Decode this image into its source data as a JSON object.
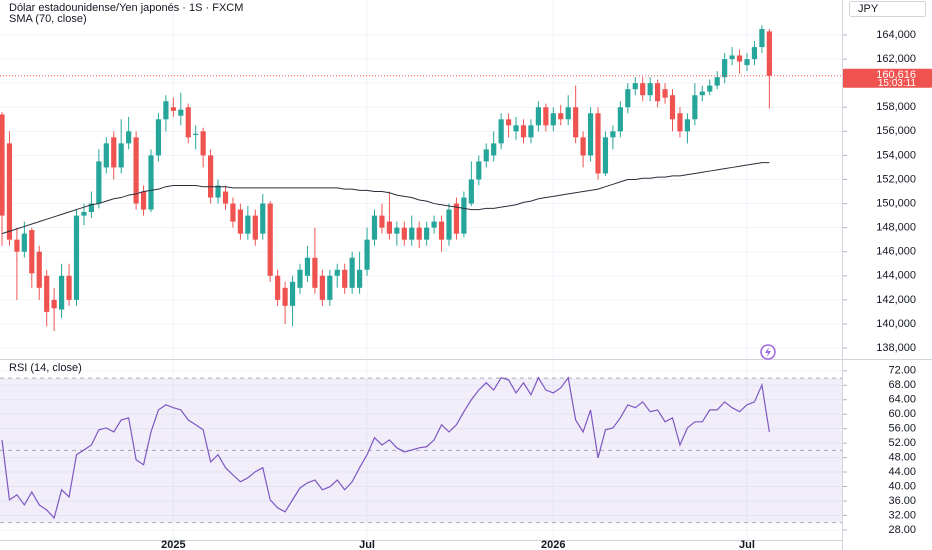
{
  "header": {
    "currency": "JPY"
  },
  "chart_data": [
    {
      "type": "candlestick",
      "title": "Dólar estadounidense/Yen japonés · 1S · FXCM",
      "categories": [
        null,
        null,
        null,
        null,
        null,
        null,
        null,
        null,
        null,
        null,
        null,
        null,
        null,
        null,
        null,
        null,
        null,
        null,
        null,
        null,
        null,
        null,
        null,
        "2025",
        null,
        null,
        null,
        null,
        null,
        null,
        null,
        null,
        null,
        null,
        null,
        null,
        null,
        null,
        null,
        null,
        null,
        null,
        null,
        null,
        null,
        null,
        null,
        null,
        null,
        "Jul",
        null,
        null,
        null,
        null,
        null,
        null,
        null,
        null,
        null,
        null,
        null,
        null,
        null,
        null,
        null,
        null,
        null,
        null,
        null,
        null,
        null,
        null,
        null,
        null,
        "2026",
        null,
        null,
        null,
        null,
        null,
        null,
        null,
        null,
        null,
        null,
        null,
        null,
        null,
        null,
        null,
        null,
        null,
        null,
        null,
        null,
        null,
        null,
        null,
        null,
        null,
        "Jul",
        null,
        null,
        null
      ],
      "open": [
        157.4,
        155,
        147,
        146,
        147.8,
        146,
        144,
        142,
        141.2,
        144,
        142,
        149,
        149.3,
        150,
        153,
        155.5,
        153,
        155,
        155.5,
        151,
        149.5,
        154,
        157,
        158,
        157.3,
        158,
        155.7,
        156,
        154,
        150.5,
        151,
        150,
        149.5,
        147.5,
        149,
        147.5,
        150,
        144,
        143,
        141.5,
        143,
        144,
        145.5,
        144,
        142,
        144,
        144.5,
        143,
        143,
        144.5,
        147,
        149,
        148.5,
        147.5,
        148,
        147,
        148,
        147,
        148,
        148.5,
        147,
        150,
        147.5,
        150,
        152,
        153.5,
        154,
        155,
        157,
        156,
        156.5,
        155.5,
        156.5,
        158,
        156.5,
        157.5,
        157,
        158,
        155.5,
        154,
        157.5,
        152.5,
        155.5,
        156,
        158,
        159.5,
        160,
        159,
        160,
        159.5,
        159,
        157.5,
        156,
        157,
        159,
        159.3,
        159.8,
        160.5,
        162,
        162.3,
        161.5,
        162,
        163,
        164.3
      ],
      "high": [
        157.6,
        156,
        148,
        148.5,
        148,
        146.5,
        144.5,
        143,
        145,
        145,
        149.5,
        150,
        151,
        154.5,
        155.5,
        156,
        157,
        157.2,
        156,
        151.5,
        154.5,
        157.5,
        159,
        158.8,
        159.2,
        158.3,
        156.5,
        156.3,
        154.5,
        152,
        151.5,
        150.5,
        150,
        149.8,
        149.5,
        150.8,
        150.2,
        144.5,
        143.5,
        144,
        145,
        146.5,
        148,
        144.5,
        144.5,
        145,
        145,
        146,
        146,
        148,
        149.5,
        150,
        151,
        148.5,
        148.5,
        149,
        148.5,
        148.5,
        149,
        149,
        150,
        150.5,
        151,
        153.5,
        154,
        155,
        156,
        157.5,
        157.5,
        157.2,
        157,
        157,
        158.5,
        158.3,
        158,
        158.2,
        159,
        159.8,
        156,
        158,
        158,
        156,
        156.5,
        158.5,
        160,
        160.5,
        160.5,
        160.5,
        160.3,
        160,
        159.5,
        158,
        157.5,
        160,
        159.8,
        160.3,
        161,
        162.5,
        163,
        162.8,
        162.5,
        163.5,
        164.8,
        164.5
      ],
      "low": [
        146.5,
        146.5,
        142,
        145.5,
        143,
        142,
        139.8,
        139.4,
        140.5,
        141.5,
        141.5,
        148.2,
        148.8,
        149.6,
        152.5,
        152,
        152.5,
        154.5,
        149.5,
        149,
        149.3,
        153.5,
        156,
        157.2,
        156.5,
        155,
        154.5,
        153,
        150,
        150,
        149.5,
        148,
        147,
        147,
        146.5,
        147,
        143.5,
        141.5,
        140,
        139.8,
        142.5,
        143.5,
        142.5,
        141.5,
        141.5,
        143,
        142.5,
        142.5,
        142.5,
        144,
        146.5,
        147.5,
        147,
        146.5,
        146.5,
        146.5,
        146.3,
        146.5,
        147.5,
        146,
        146.5,
        147,
        147.2,
        149.8,
        151.5,
        153,
        153.5,
        154.5,
        155.5,
        155.3,
        155,
        155,
        156,
        156,
        156,
        156.5,
        156.5,
        155,
        153,
        153.5,
        152,
        152.3,
        154.5,
        155.5,
        157.5,
        159,
        158.5,
        158.5,
        158,
        158.3,
        156,
        155.5,
        155,
        156.5,
        158.5,
        159,
        159.5,
        160,
        161.5,
        160.8,
        161,
        161.5,
        162.5,
        157.9
      ],
      "close": [
        149,
        147,
        146,
        147.5,
        144.2,
        143,
        141,
        141.3,
        144,
        142,
        149,
        149.3,
        150,
        153.5,
        155,
        153,
        155,
        156,
        150,
        149.5,
        154,
        157,
        158.5,
        157.7,
        157.8,
        155.5,
        155.8,
        154,
        150.5,
        151.5,
        150,
        148.5,
        147.5,
        149,
        147,
        150,
        144,
        142,
        141.5,
        143.5,
        144.5,
        145.5,
        143,
        142,
        144,
        144.5,
        143,
        145.5,
        144.5,
        147,
        149,
        148,
        147.5,
        148,
        147,
        148,
        147,
        148,
        148.5,
        147,
        149.5,
        147.5,
        150.5,
        152,
        153.5,
        154.5,
        155,
        157,
        156.5,
        156.5,
        155.5,
        156.5,
        158,
        156.5,
        157.5,
        157,
        158,
        155.5,
        154,
        157.5,
        152.5,
        155.5,
        156,
        158,
        159.5,
        160,
        159,
        160,
        158.5,
        158.8,
        157,
        156,
        157,
        159,
        159.3,
        159.8,
        160.5,
        162,
        162.3,
        161.8,
        162,
        163,
        164.5,
        160.616
      ],
      "up_color": "#26a69a",
      "down_color": "#ef5350",
      "series": [
        {
          "name": "SMA (70, close)",
          "color": "#2a2e39",
          "values": [
            147.5,
            147.7,
            147.9,
            148.1,
            148.3,
            148.5,
            148.7,
            148.9,
            149.1,
            149.3,
            149.5,
            149.7,
            149.9,
            150.0,
            150.2,
            150.4,
            150.5,
            150.7,
            150.8,
            151.0,
            151.1,
            151.2,
            151.4,
            151.5,
            151.5,
            151.5,
            151.5,
            151.4,
            151.4,
            151.4,
            151.4,
            151.3,
            151.3,
            151.3,
            151.3,
            151.3,
            151.3,
            151.3,
            151.3,
            151.3,
            151.3,
            151.3,
            151.3,
            151.3,
            151.3,
            151.3,
            151.2,
            151.2,
            151.1,
            151.1,
            151.0,
            151.0,
            150.9,
            150.7,
            150.6,
            150.5,
            150.3,
            150.2,
            150.0,
            149.9,
            149.8,
            149.7,
            149.6,
            149.5,
            149.5,
            149.6,
            149.6,
            149.7,
            149.8,
            149.9,
            150.1,
            150.2,
            150.4,
            150.5,
            150.6,
            150.7,
            150.8,
            150.9,
            151.0,
            151.1,
            151.2,
            151.4,
            151.6,
            151.8,
            152.0,
            152.0,
            152.1,
            152.1,
            152.2,
            152.2,
            152.3,
            152.3,
            152.4,
            152.5,
            152.6,
            152.7,
            152.8,
            152.9,
            153.0,
            153.1,
            153.2,
            153.3,
            153.4,
            153.4
          ]
        }
      ],
      "ylim": [
        137.17,
        166.91
      ],
      "yticks": [
        {
          "value": 138,
          "label": "138,000"
        },
        {
          "value": 140,
          "label": "140,000"
        },
        {
          "value": 142,
          "label": "142,000"
        },
        {
          "value": 144,
          "label": "144,000"
        },
        {
          "value": 146,
          "label": "146,000"
        },
        {
          "value": 148,
          "label": "148,000"
        },
        {
          "value": 150,
          "label": "150,000"
        },
        {
          "value": 152,
          "label": "152,000"
        },
        {
          "value": 154,
          "label": "154,000"
        },
        {
          "value": 156,
          "label": "156,000"
        },
        {
          "value": 158,
          "label": "158,000"
        },
        {
          "value": 160,
          "label": "160,000"
        },
        {
          "value": 162,
          "label": "162,000"
        },
        {
          "value": 164,
          "label": "164,000"
        }
      ],
      "last_price": {
        "value": 160.616,
        "label": "160,616"
      },
      "countdown": "15:03:11",
      "grid": true
    },
    {
      "type": "line",
      "series": [
        {
          "name": "RSI (14, close)",
          "color": "#7e57c2",
          "values": [
            52.9,
            36.3,
            37.7,
            34.9,
            38.5,
            34.9,
            33.5,
            31.3,
            39.1,
            37.1,
            48.8,
            50.1,
            51.5,
            55.7,
            56.2,
            55.1,
            58.4,
            59.0,
            47.4,
            46.0,
            55.1,
            61.2,
            62.6,
            61.8,
            61.2,
            58.4,
            57.1,
            55.7,
            46.8,
            48.8,
            45.2,
            43.2,
            41.3,
            42.4,
            44.1,
            45.2,
            36.3,
            34.1,
            33.0,
            36.3,
            39.6,
            41.0,
            41.8,
            39.1,
            39.9,
            41.8,
            39.1,
            41.3,
            45.2,
            48.8,
            53.5,
            51.5,
            52.9,
            50.7,
            49.6,
            50.1,
            50.7,
            51.0,
            52.9,
            57.1,
            55.1,
            57.1,
            60.7,
            64.0,
            66.7,
            68.7,
            66.7,
            70.1,
            69.5,
            65.9,
            68.7,
            65.4,
            70.1,
            66.7,
            65.9,
            67.3,
            70.1,
            58.4,
            55.1,
            61.2,
            47.9,
            55.7,
            56.2,
            59.0,
            62.6,
            61.8,
            63.4,
            60.7,
            61.2,
            57.9,
            59.0,
            51.5,
            56.2,
            57.9,
            57.9,
            61.2,
            61.2,
            63.4,
            61.8,
            60.7,
            62.6,
            63.4,
            68.1,
            55.1
          ]
        }
      ],
      "bands": [
        30,
        50,
        70
      ],
      "band_fill": "rgba(126,87,194,0.1)",
      "ylim": [
        25.2,
        75.0
      ],
      "yticks": [
        {
          "value": 28,
          "label": "28.00"
        },
        {
          "value": 32,
          "label": "32.00"
        },
        {
          "value": 36,
          "label": "36.00"
        },
        {
          "value": 40,
          "label": "40.00"
        },
        {
          "value": 44,
          "label": "44.00"
        },
        {
          "value": 48,
          "label": "48.00"
        },
        {
          "value": 52,
          "label": "52.00"
        },
        {
          "value": 56,
          "label": "56.00"
        },
        {
          "value": 60,
          "label": "60.00"
        },
        {
          "value": 64,
          "label": "64.00"
        },
        {
          "value": 68,
          "label": "68.00"
        },
        {
          "value": 72,
          "label": "72.00"
        }
      ],
      "grid": true
    }
  ]
}
